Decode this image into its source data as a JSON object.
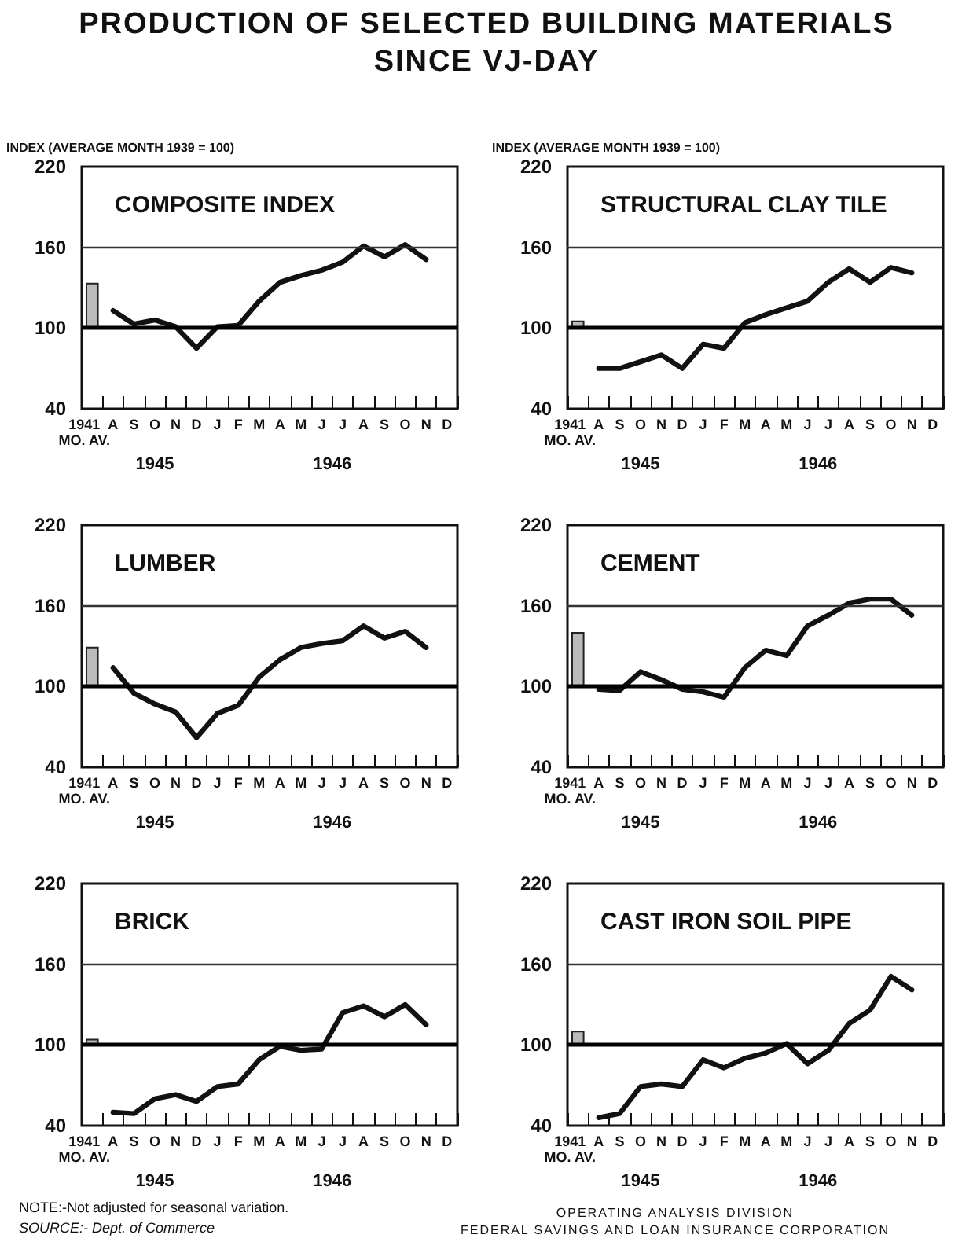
{
  "chart_data": [
    {
      "type": "line",
      "title": "COMPOSITE INDEX",
      "ylabel": "INDEX (AVERAGE MONTH 1939 = 100)",
      "categories": [
        "1941\nMO. AV.",
        "A",
        "S",
        "O",
        "N",
        "D",
        "J",
        "F",
        "M",
        "A",
        "M",
        "J",
        "J",
        "A",
        "S",
        "O",
        "N",
        "D"
      ],
      "ylim": [
        40,
        220
      ],
      "yticks": [
        40,
        100,
        160,
        220
      ],
      "ref_lines": [
        {
          "axis": "y",
          "value": 100
        },
        {
          "axis": "y",
          "value": 160,
          "line_style": "solid",
          "color": "#333333"
        }
      ],
      "annotations": [
        "1945",
        "1946",
        "PRODUCTION OF SELECTED BUILDING MATERIALS\nSINCE VJ-DAY"
      ],
      "series": [
        {
          "type": "bar",
          "color": "#bbbbbb",
          "base": [
            100,
            null,
            null,
            null,
            null,
            null,
            null,
            null,
            null,
            null,
            null,
            null,
            null,
            null,
            null,
            null,
            null,
            null
          ],
          "values": [
            33,
            null,
            null,
            null,
            null,
            null,
            null,
            null,
            null,
            null,
            null,
            null,
            null,
            null,
            null,
            null,
            null,
            null
          ]
        },
        {
          "color": "#111111",
          "values": [
            null,
            113,
            103,
            106,
            101,
            85,
            101,
            102,
            120,
            134,
            139,
            143,
            149,
            161,
            153,
            162,
            151,
            null
          ]
        }
      ]
    },
    {
      "type": "line",
      "title": "STRUCTURAL CLAY TILE",
      "ylabel": "INDEX (AVERAGE MONTH 1939 = 100)",
      "categories": [
        "1941\nMO. AV.",
        "A",
        "S",
        "O",
        "N",
        "D",
        "J",
        "F",
        "M",
        "A",
        "M",
        "J",
        "J",
        "A",
        "S",
        "O",
        "N",
        "D"
      ],
      "ylim": [
        40,
        220
      ],
      "yticks": [
        40,
        100,
        160,
        220
      ],
      "ref_lines": [
        {
          "axis": "y",
          "value": 100
        },
        {
          "axis": "y",
          "value": 160,
          "line_style": "solid",
          "color": "#333333"
        }
      ],
      "annotations": [
        "1945",
        "1946"
      ],
      "series": [
        {
          "type": "bar",
          "color": "#bbbbbb",
          "base": [
            100,
            null,
            null,
            null,
            null,
            null,
            null,
            null,
            null,
            null,
            null,
            null,
            null,
            null,
            null,
            null,
            null,
            null
          ],
          "values": [
            5,
            null,
            null,
            null,
            null,
            null,
            null,
            null,
            null,
            null,
            null,
            null,
            null,
            null,
            null,
            null,
            null,
            null
          ]
        },
        {
          "color": "#111111",
          "values": [
            null,
            70,
            70,
            75,
            80,
            70,
            88,
            85,
            104,
            110,
            115,
            120,
            134,
            144,
            134,
            145,
            141,
            null
          ]
        }
      ]
    },
    {
      "type": "line",
      "title": "LUMBER",
      "categories": [
        "1941\nMO. AV.",
        "A",
        "S",
        "O",
        "N",
        "D",
        "J",
        "F",
        "M",
        "A",
        "M",
        "J",
        "J",
        "A",
        "S",
        "O",
        "N",
        "D"
      ],
      "ylim": [
        40,
        220
      ],
      "yticks": [
        40,
        100,
        160,
        220
      ],
      "ref_lines": [
        {
          "axis": "y",
          "value": 100
        },
        {
          "axis": "y",
          "value": 160,
          "line_style": "solid",
          "color": "#333333"
        }
      ],
      "annotations": [
        "1945",
        "1946"
      ],
      "series": [
        {
          "type": "bar",
          "color": "#bbbbbb",
          "base": [
            100,
            null,
            null,
            null,
            null,
            null,
            null,
            null,
            null,
            null,
            null,
            null,
            null,
            null,
            null,
            null,
            null,
            null
          ],
          "values": [
            29,
            null,
            null,
            null,
            null,
            null,
            null,
            null,
            null,
            null,
            null,
            null,
            null,
            null,
            null,
            null,
            null,
            null
          ]
        },
        {
          "color": "#111111",
          "values": [
            null,
            114,
            95,
            87,
            81,
            62,
            80,
            86,
            107,
            120,
            129,
            132,
            134,
            145,
            136,
            141,
            129,
            null
          ]
        }
      ]
    },
    {
      "type": "line",
      "title": "CEMENT",
      "categories": [
        "1941\nMO. AV.",
        "A",
        "S",
        "O",
        "N",
        "D",
        "J",
        "F",
        "M",
        "A",
        "M",
        "J",
        "J",
        "A",
        "S",
        "O",
        "N",
        "D"
      ],
      "ylim": [
        40,
        220
      ],
      "yticks": [
        40,
        100,
        160,
        220
      ],
      "ref_lines": [
        {
          "axis": "y",
          "value": 100
        },
        {
          "axis": "y",
          "value": 160,
          "line_style": "solid",
          "color": "#333333"
        }
      ],
      "annotations": [
        "1945",
        "1946"
      ],
      "series": [
        {
          "type": "bar",
          "color": "#bbbbbb",
          "base": [
            100,
            null,
            null,
            null,
            null,
            null,
            null,
            null,
            null,
            null,
            null,
            null,
            null,
            null,
            null,
            null,
            null,
            null
          ],
          "values": [
            40,
            null,
            null,
            null,
            null,
            null,
            null,
            null,
            null,
            null,
            null,
            null,
            null,
            null,
            null,
            null,
            null,
            null
          ]
        },
        {
          "color": "#111111",
          "values": [
            null,
            98,
            97,
            111,
            105,
            98,
            96,
            92,
            114,
            127,
            123,
            145,
            153,
            162,
            165,
            165,
            153,
            null
          ]
        }
      ]
    },
    {
      "type": "line",
      "title": "BRICK",
      "categories": [
        "1941\nMO. AV.",
        "A",
        "S",
        "O",
        "N",
        "D",
        "J",
        "F",
        "M",
        "A",
        "M",
        "J",
        "J",
        "A",
        "S",
        "O",
        "N",
        "D"
      ],
      "ylim": [
        40,
        220
      ],
      "yticks": [
        40,
        100,
        160,
        220
      ],
      "ref_lines": [
        {
          "axis": "y",
          "value": 100
        },
        {
          "axis": "y",
          "value": 160,
          "line_style": "solid",
          "color": "#333333"
        }
      ],
      "annotations": [
        "1945",
        "1946",
        "NOTE:-Not adjusted for seasonal variation.",
        "SOURCE:- Dept. of Commerce"
      ],
      "series": [
        {
          "type": "bar",
          "color": "#bbbbbb",
          "base": [
            100,
            null,
            null,
            null,
            null,
            null,
            null,
            null,
            null,
            null,
            null,
            null,
            null,
            null,
            null,
            null,
            null,
            null
          ],
          "values": [
            4,
            null,
            null,
            null,
            null,
            null,
            null,
            null,
            null,
            null,
            null,
            null,
            null,
            null,
            null,
            null,
            null,
            null
          ]
        },
        {
          "color": "#111111",
          "values": [
            null,
            50,
            49,
            60,
            63,
            58,
            69,
            71,
            89,
            99,
            96,
            97,
            124,
            129,
            121,
            130,
            115,
            null
          ]
        }
      ]
    },
    {
      "type": "line",
      "title": "CAST IRON SOIL PIPE",
      "categories": [
        "1941\nMO. AV.",
        "A",
        "S",
        "O",
        "N",
        "D",
        "J",
        "F",
        "M",
        "A",
        "M",
        "J",
        "J",
        "A",
        "S",
        "O",
        "N",
        "D"
      ],
      "ylim": [
        40,
        220
      ],
      "yticks": [
        40,
        100,
        160,
        220
      ],
      "ref_lines": [
        {
          "axis": "y",
          "value": 100
        },
        {
          "axis": "y",
          "value": 160,
          "line_style": "solid",
          "color": "#333333"
        }
      ],
      "annotations": [
        "1945",
        "1946",
        "OPERATING ANALYSIS DIVISION",
        "FEDERAL SAVINGS AND LOAN INSURANCE CORPORATION"
      ],
      "series": [
        {
          "type": "bar",
          "color": "#bbbbbb",
          "base": [
            100,
            null,
            null,
            null,
            null,
            null,
            null,
            null,
            null,
            null,
            null,
            null,
            null,
            null,
            null,
            null,
            null,
            null
          ],
          "values": [
            10,
            null,
            null,
            null,
            null,
            null,
            null,
            null,
            null,
            null,
            null,
            null,
            null,
            null,
            null,
            null,
            null,
            null
          ]
        },
        {
          "color": "#111111",
          "values": [
            null,
            46,
            49,
            69,
            71,
            69,
            89,
            83,
            90,
            94,
            101,
            86,
            96,
            116,
            126,
            151,
            141,
            null
          ]
        }
      ]
    }
  ]
}
